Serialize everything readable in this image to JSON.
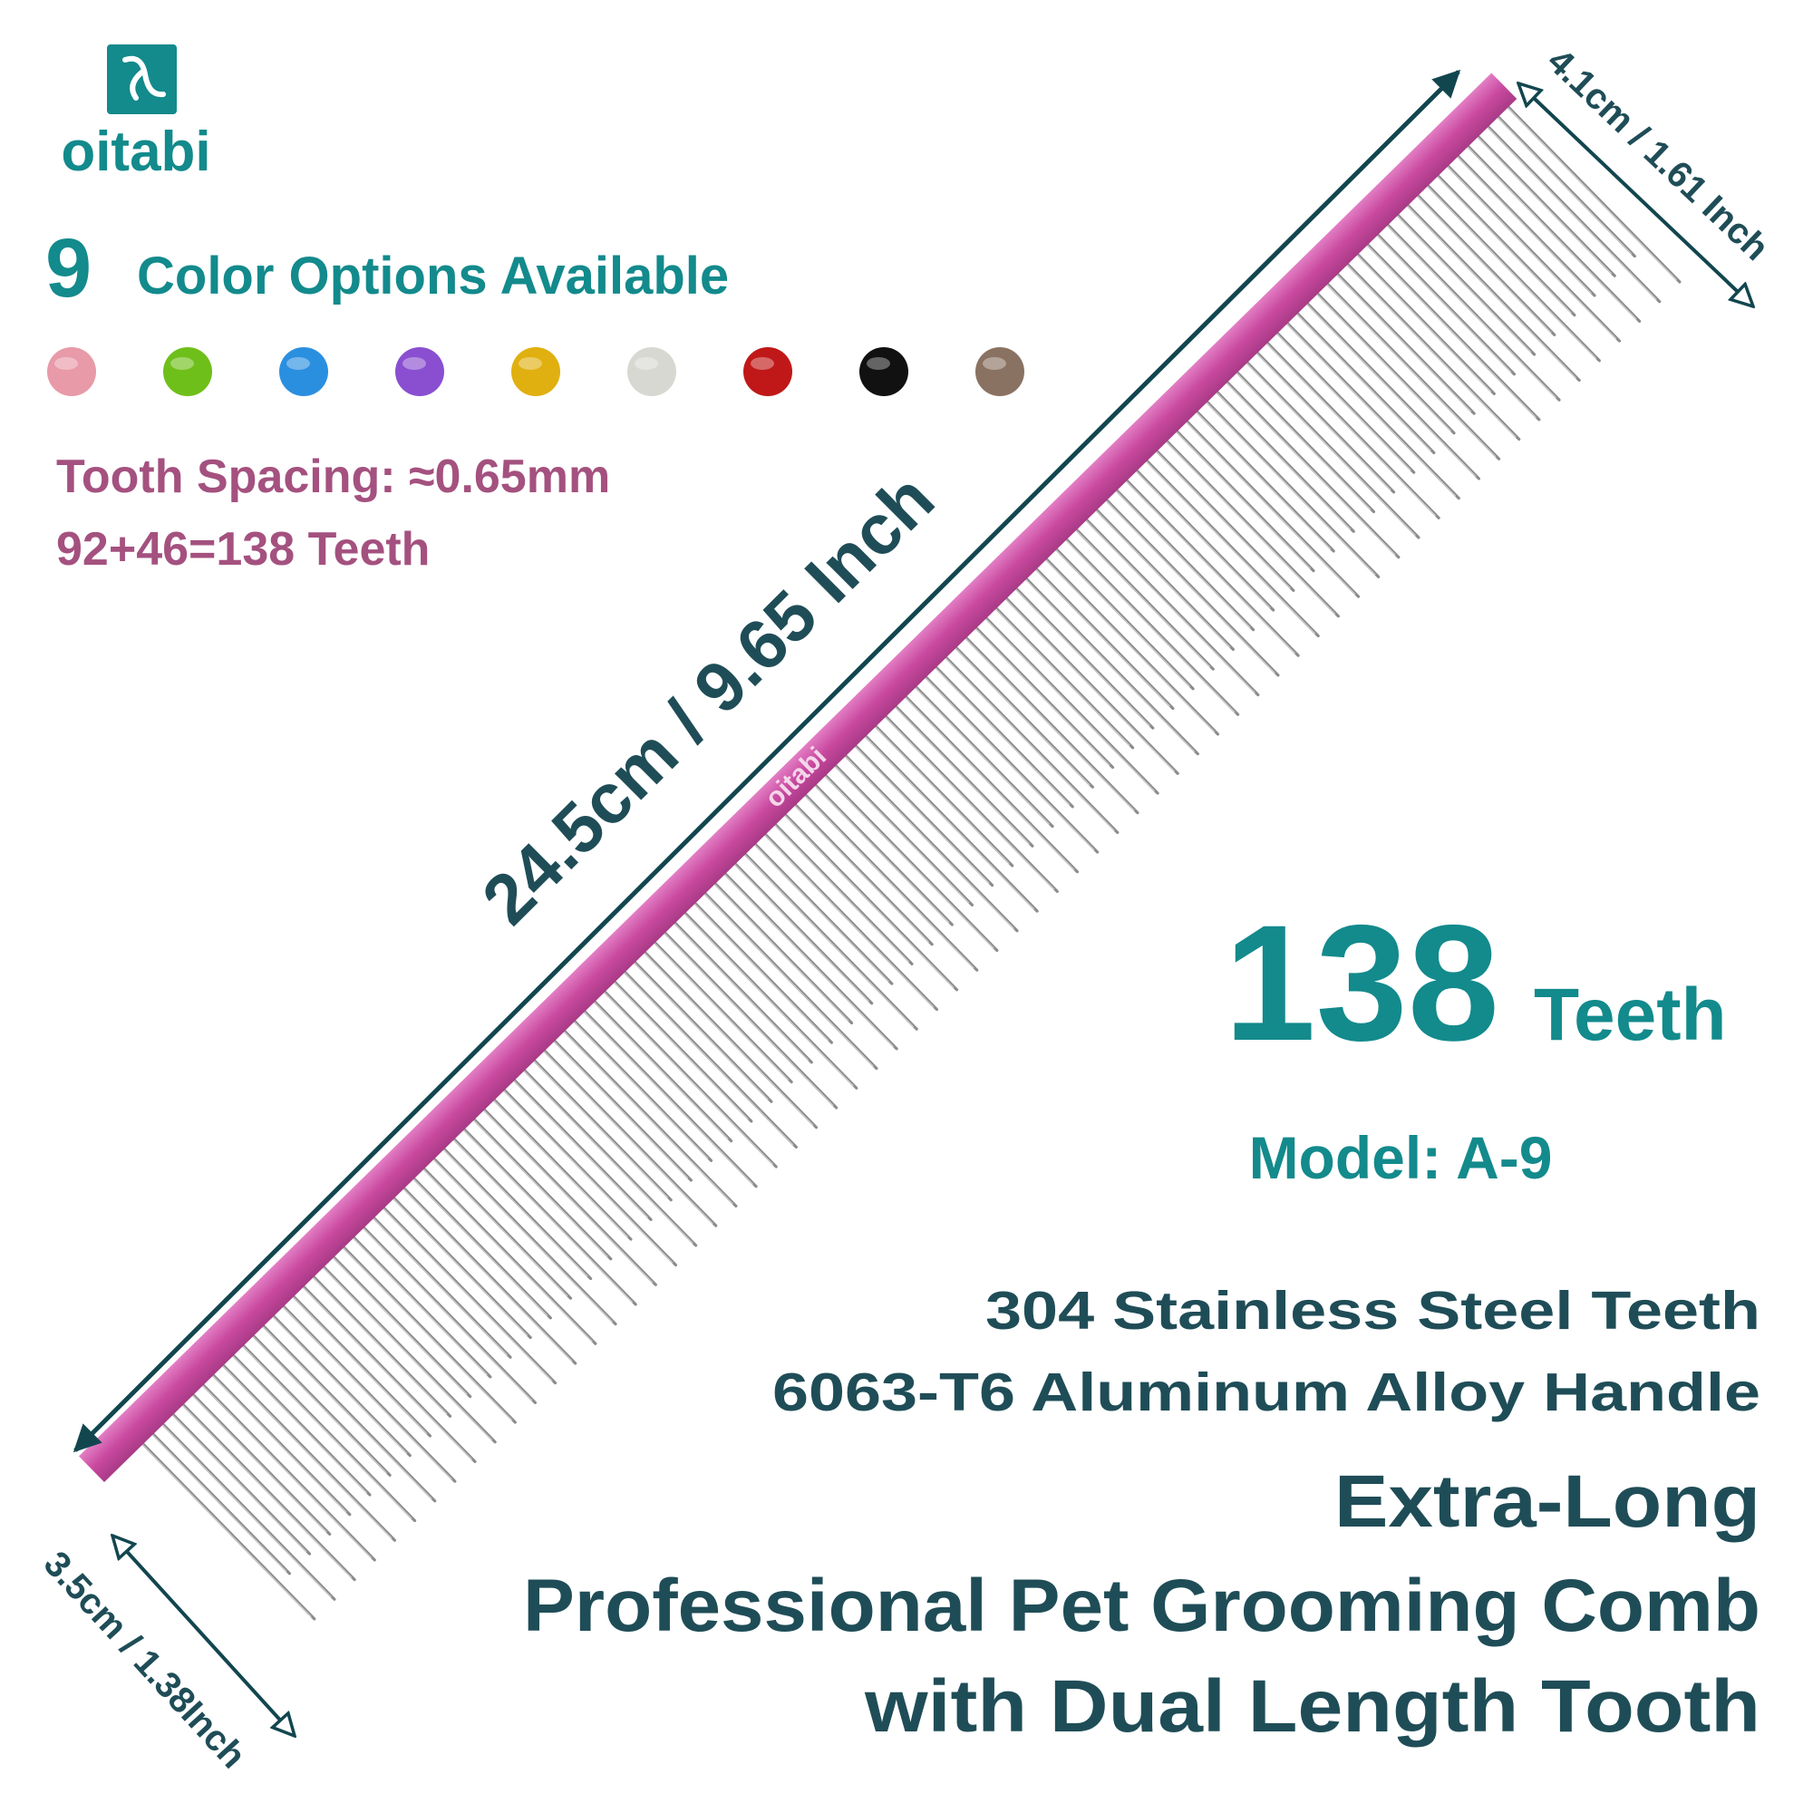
{
  "logo": {
    "brand": "oitabi"
  },
  "headline": {
    "count": "9",
    "text": "Color Options Available"
  },
  "color_options": [
    "#e89aa8",
    "#6fbf1a",
    "#2b8fe0",
    "#8a4fd0",
    "#e0b010",
    "#d8d8d2",
    "#c01818",
    "#111111",
    "#8a7262"
  ],
  "specs": {
    "tooth_spacing": "Tooth Spacing: ≈0.65mm",
    "teeth_formula": "92+46=138 Teeth"
  },
  "dimensions": {
    "length": "24.5cm / 9.65 Inch",
    "width_top": "4.1cm / 1.61 Inch",
    "width_bottom": "3.5cm / 1.38Inch"
  },
  "handle_brand": "oitabi",
  "teeth": {
    "count": "138",
    "unit": "Teeth"
  },
  "model": "Model: A-9",
  "materials": [
    "304 Stainless Steel Teeth",
    "6063-T6 Aluminum Alloy Handle"
  ],
  "title": [
    "Extra-Long",
    "Professional Pet Grooming Comb",
    "with Dual Length Tooth"
  ]
}
